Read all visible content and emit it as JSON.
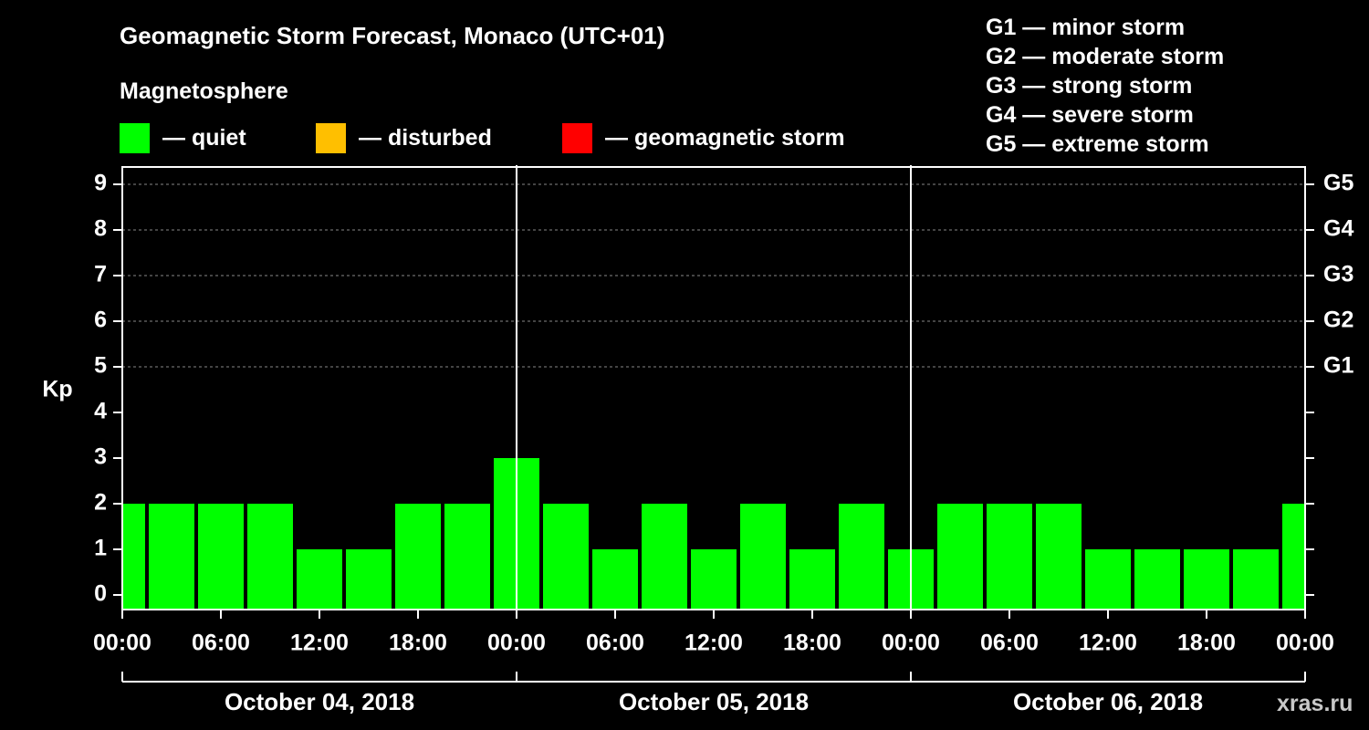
{
  "header": {
    "title": "Geomagnetic Storm Forecast, Monaco (UTC+01)",
    "subtitle": "Magnetosphere"
  },
  "legend": [
    {
      "color": "#00ff00",
      "label": "— quiet"
    },
    {
      "color": "#ffbf00",
      "label": "— disturbed"
    },
    {
      "color": "#ff0000",
      "label": "— geomagnetic storm"
    }
  ],
  "scale": [
    "G1 — minor storm",
    "G2 — moderate storm",
    "G3 — strong storm",
    "G4 — severe storm",
    "G5 — extreme storm"
  ],
  "watermark": "xras.ru",
  "chart_data": {
    "type": "bar",
    "title": "Geomagnetic Storm Forecast, Monaco (UTC+01)",
    "ylabel": "Kp",
    "ylim": [
      0,
      9
    ],
    "y_ticks": [
      "0",
      "1",
      "2",
      "3",
      "4",
      "5",
      "6",
      "7",
      "8",
      "9"
    ],
    "right_ticks": [
      {
        "kp": 5,
        "label": "G1"
      },
      {
        "kp": 6,
        "label": "G2"
      },
      {
        "kp": 7,
        "label": "G3"
      },
      {
        "kp": 8,
        "label": "G4"
      },
      {
        "kp": 9,
        "label": "G5"
      }
    ],
    "x_tick_labels": [
      "00:00",
      "06:00",
      "12:00",
      "18:00",
      "00:00",
      "06:00",
      "12:00",
      "18:00",
      "00:00",
      "06:00",
      "12:00",
      "18:00",
      "00:00"
    ],
    "days": [
      "October 04, 2018",
      "October 05, 2018",
      "October 06, 2018"
    ],
    "x": [
      "2018-10-04 00:00",
      "2018-10-04 03:00",
      "2018-10-04 06:00",
      "2018-10-04 09:00",
      "2018-10-04 12:00",
      "2018-10-04 15:00",
      "2018-10-04 18:00",
      "2018-10-04 21:00",
      "2018-10-05 00:00",
      "2018-10-05 03:00",
      "2018-10-05 06:00",
      "2018-10-05 09:00",
      "2018-10-05 12:00",
      "2018-10-05 15:00",
      "2018-10-05 18:00",
      "2018-10-05 21:00",
      "2018-10-06 00:00",
      "2018-10-06 03:00",
      "2018-10-06 06:00",
      "2018-10-06 09:00",
      "2018-10-06 12:00",
      "2018-10-06 15:00",
      "2018-10-06 18:00",
      "2018-10-06 21:00",
      "2018-10-07 00:00"
    ],
    "values": [
      2,
      2,
      2,
      2,
      1,
      1,
      2,
      2,
      3,
      2,
      1,
      2,
      1,
      2,
      1,
      2,
      1,
      2,
      2,
      2,
      1,
      1,
      1,
      1,
      2
    ],
    "status": [
      "quiet",
      "quiet",
      "quiet",
      "quiet",
      "quiet",
      "quiet",
      "quiet",
      "quiet",
      "quiet",
      "quiet",
      "quiet",
      "quiet",
      "quiet",
      "quiet",
      "quiet",
      "quiet",
      "quiet",
      "quiet",
      "quiet",
      "quiet",
      "quiet",
      "quiet",
      "quiet",
      "quiet",
      "quiet"
    ],
    "status_colors": {
      "quiet": "#00ff00",
      "disturbed": "#ffbf00",
      "storm": "#ff0000"
    },
    "grid": true
  }
}
